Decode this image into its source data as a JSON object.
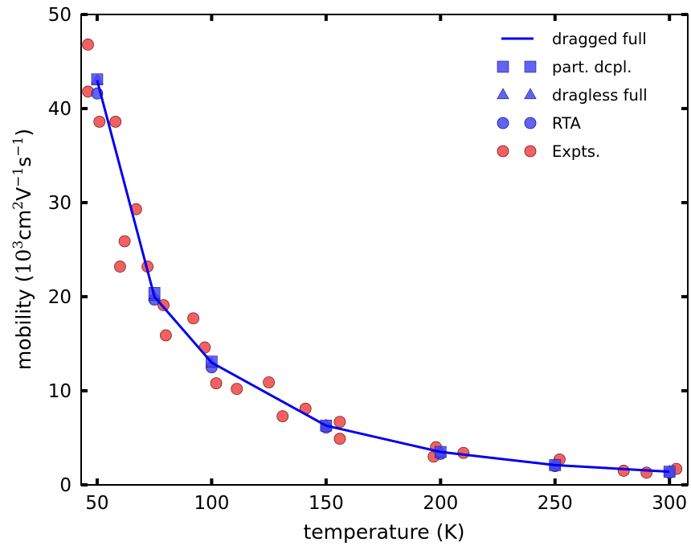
{
  "chart_data": {
    "type": "scatter",
    "xlabel": "temperature (K)",
    "ylabel": "mobility (",
    "ylabel_math": {
      "base1": "10",
      "sup1": "3",
      "unit1": "cm",
      "sup2": "2",
      "unit2": "V",
      "sup3": "−1",
      "unit3": "s",
      "sup4": "−1",
      "close": ")"
    },
    "xlim": [
      43,
      308
    ],
    "ylim": [
      0,
      50
    ],
    "xticks": [
      50,
      100,
      150,
      200,
      250,
      300
    ],
    "yticks": [
      0,
      10,
      20,
      30,
      40,
      50
    ],
    "grid": false,
    "legend_position": "top-right",
    "series": [
      {
        "name": "dragged full",
        "kind": "line",
        "color": "#0000ee",
        "x": [
          50,
          75,
          100,
          150,
          200,
          250,
          300
        ],
        "y": [
          43.0,
          20.0,
          13.0,
          6.3,
          3.5,
          2.1,
          1.4
        ]
      },
      {
        "name": "part. dcpl.",
        "kind": "square",
        "color": "#4848f0",
        "x": [
          50,
          75,
          100,
          150,
          200,
          250,
          300
        ],
        "y": [
          43.1,
          20.4,
          13.1,
          6.3,
          3.5,
          2.1,
          1.4
        ]
      },
      {
        "name": "dragless full",
        "kind": "triangle",
        "color": "#4848f0",
        "x": [
          50,
          75,
          100,
          150,
          200,
          250,
          300
        ],
        "y": [
          43.0,
          20.0,
          12.9,
          6.3,
          3.4,
          2.1,
          1.4
        ]
      },
      {
        "name": "RTA",
        "kind": "circle",
        "color": "#4848f0",
        "x": [
          50,
          75,
          100,
          150,
          200,
          250,
          300
        ],
        "y": [
          41.6,
          19.7,
          12.5,
          6.1,
          3.3,
          2.0,
          1.3
        ]
      },
      {
        "name": "Expts.",
        "kind": "circle",
        "color": "#f04545",
        "x": [
          46,
          46,
          51,
          58,
          60,
          62,
          67,
          72,
          79,
          80,
          92,
          97,
          102,
          111,
          125,
          131,
          141,
          156,
          156,
          197,
          198,
          210,
          252,
          280,
          290,
          303
        ],
        "y": [
          46.8,
          41.8,
          38.6,
          38.6,
          23.2,
          25.9,
          29.3,
          23.2,
          19.1,
          15.9,
          17.7,
          14.6,
          10.8,
          10.2,
          10.9,
          7.3,
          8.1,
          6.7,
          4.9,
          3.0,
          4.0,
          3.4,
          2.7,
          1.5,
          1.3,
          1.7
        ]
      }
    ]
  }
}
